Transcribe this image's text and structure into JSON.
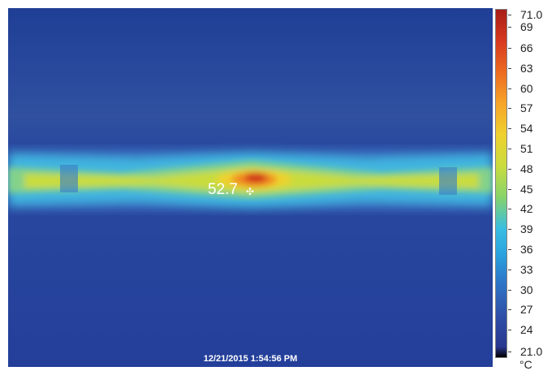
{
  "image": {
    "spot_temperature": "52.7",
    "timestamp": "12/21/2015 1:54:56 PM"
  },
  "scale": {
    "max": "71.0",
    "min": "21.0",
    "unit": "°C",
    "ticks": [
      "69",
      "66",
      "63",
      "60",
      "57",
      "54",
      "51",
      "48",
      "45",
      "42",
      "39",
      "36",
      "33",
      "30",
      "27",
      "24"
    ]
  },
  "colors": {
    "hot": "#c21a14",
    "cold": "#243f9a",
    "background": "#ffffff"
  },
  "icons": {
    "spot_marker": "crosshair-icon"
  }
}
